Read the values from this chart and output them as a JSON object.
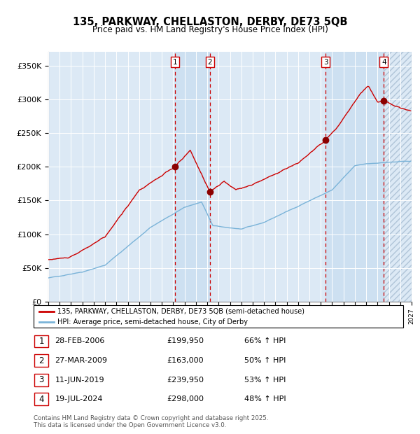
{
  "title": "135, PARKWAY, CHELLASTON, DERBY, DE73 5QB",
  "subtitle": "Price paid vs. HM Land Registry's House Price Index (HPI)",
  "x_start_year": 1995,
  "x_end_year": 2027,
  "ylim": [
    0,
    370000
  ],
  "yticks": [
    0,
    50000,
    100000,
    150000,
    200000,
    250000,
    300000,
    350000
  ],
  "ytick_labels": [
    "£0",
    "£50K",
    "£100K",
    "£150K",
    "£200K",
    "£250K",
    "£300K",
    "£350K"
  ],
  "hpi_color": "#7ab3d8",
  "price_color": "#cc0000",
  "sale_marker_color": "#8b0000",
  "vline_color": "#cc0000",
  "background_color": "#dce9f5",
  "grid_color": "#ffffff",
  "sale_dates": [
    2006.16,
    2009.24,
    2019.44,
    2024.55
  ],
  "sale_prices": [
    199950,
    163000,
    239950,
    298000
  ],
  "sale_labels": [
    "1",
    "2",
    "3",
    "4"
  ],
  "legend_line1": "135, PARKWAY, CHELLASTON, DERBY, DE73 5QB (semi-detached house)",
  "legend_line2": "HPI: Average price, semi-detached house, City of Derby",
  "table_entries": [
    {
      "num": "1",
      "date": "28-FEB-2006",
      "price": "£199,950",
      "hpi": "66% ↑ HPI"
    },
    {
      "num": "2",
      "date": "27-MAR-2009",
      "price": "£163,000",
      "hpi": "50% ↑ HPI"
    },
    {
      "num": "3",
      "date": "11-JUN-2019",
      "price": "£239,950",
      "hpi": "53% ↑ HPI"
    },
    {
      "num": "4",
      "date": "19-JUL-2024",
      "price": "£298,000",
      "hpi": "48% ↑ HPI"
    }
  ],
  "footer": "Contains HM Land Registry data © Crown copyright and database right 2025.\nThis data is licensed under the Open Government Licence v3.0."
}
